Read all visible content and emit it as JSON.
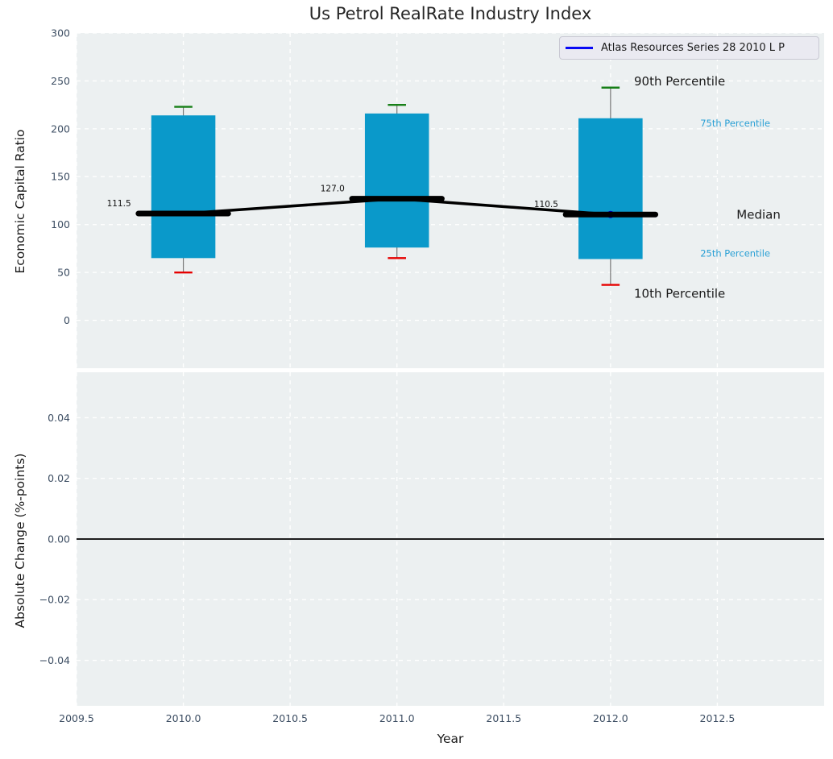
{
  "figure": {
    "title": "Us Petrol RealRate Industry Index"
  },
  "legend": {
    "label": "Atlas Resources Series 28 2010 L P"
  },
  "style": {
    "axes_bg": "#ecf0f1",
    "grid_color": "#ffffff",
    "tick_color": "#3d4e63",
    "text_color": "#1a1a1a",
    "box_fill": "#0a99ca",
    "whisker_color": "#777777",
    "cap_top_color": "#177f17",
    "cap_bottom_color": "#e60000",
    "median_color": "#000000",
    "trend_color": "#000000",
    "marker_color": "#0000cc",
    "legend_line_color": "#0808f5",
    "percentile_label_color": "#2aa0d5",
    "zero_line_color": "#000000",
    "value_label_color": "#111111"
  },
  "chart_data": [
    {
      "type": "box",
      "title": "Us Petrol RealRate Industry Index",
      "ylabel": "Economic Capital Ratio",
      "xlim": [
        2009.5,
        2013.0
      ],
      "ylim": [
        -50,
        300
      ],
      "y_ticks": [
        300,
        250,
        200,
        150,
        100,
        50,
        0
      ],
      "grid": true,
      "legend_position": "upper right",
      "legend_entries": [
        "Atlas Resources Series 28 2010 L P"
      ],
      "box_width_years": 0.3,
      "median_segment_width_years": 0.42,
      "cap_width_years": 0.085,
      "boxes": [
        {
          "x": 2010,
          "p10": 50,
          "p25": 65,
          "median": 111.5,
          "p75": 214,
          "p90": 223,
          "median_label": "111.5"
        },
        {
          "x": 2011,
          "p10": 65,
          "p25": 76,
          "median": 127.0,
          "p75": 216,
          "p90": 225,
          "median_label": "127.0"
        },
        {
          "x": 2012,
          "p10": 37,
          "p25": 64,
          "median": 110.5,
          "p75": 211,
          "p90": 243,
          "median_label": "110.5"
        }
      ],
      "median_trend": {
        "x": [
          2010,
          2011,
          2012
        ],
        "y": [
          111.5,
          127.0,
          110.5
        ]
      },
      "series_marker": {
        "name": "Atlas Resources Series 28 2010 L P",
        "x": 2012,
        "y": 110.5
      },
      "annotations": [
        {
          "text": "90th Percentile",
          "x": 2012.11,
          "y": 250,
          "color": "#1a1a1a",
          "size": 15
        },
        {
          "text": "75th Percentile",
          "x": 2012.42,
          "y": 206,
          "color": "#2aa0d5",
          "size": 11.5
        },
        {
          "text": "Median",
          "x": 2012.59,
          "y": 110.5,
          "color": "#1a1a1a",
          "size": 15
        },
        {
          "text": "25th Percentile",
          "x": 2012.42,
          "y": 70,
          "color": "#2aa0d5",
          "size": 11.5
        },
        {
          "text": "10th Percentile",
          "x": 2012.11,
          "y": 28,
          "color": "#1a1a1a",
          "size": 15
        }
      ]
    },
    {
      "type": "line",
      "ylabel": "Absolute Change (%-points)",
      "xlabel": "Year",
      "xlim": [
        2009.5,
        2013.0
      ],
      "ylim": [
        -0.055,
        0.055
      ],
      "y_ticks": [
        0.04,
        0.02,
        0.0,
        -0.02,
        -0.04
      ],
      "y_tick_labels": [
        "0.04",
        "0.02",
        "0.00",
        "−0.02",
        "−0.04"
      ],
      "x_ticks": [
        2009.5,
        2010.0,
        2010.5,
        2011.0,
        2011.5,
        2012.0,
        2012.5
      ],
      "x_tick_labels": [
        "2009.5",
        "2010.0",
        "2010.5",
        "2011.0",
        "2011.5",
        "2012.0",
        "2012.5"
      ],
      "zero_line_y": 0.0,
      "grid": true
    }
  ]
}
